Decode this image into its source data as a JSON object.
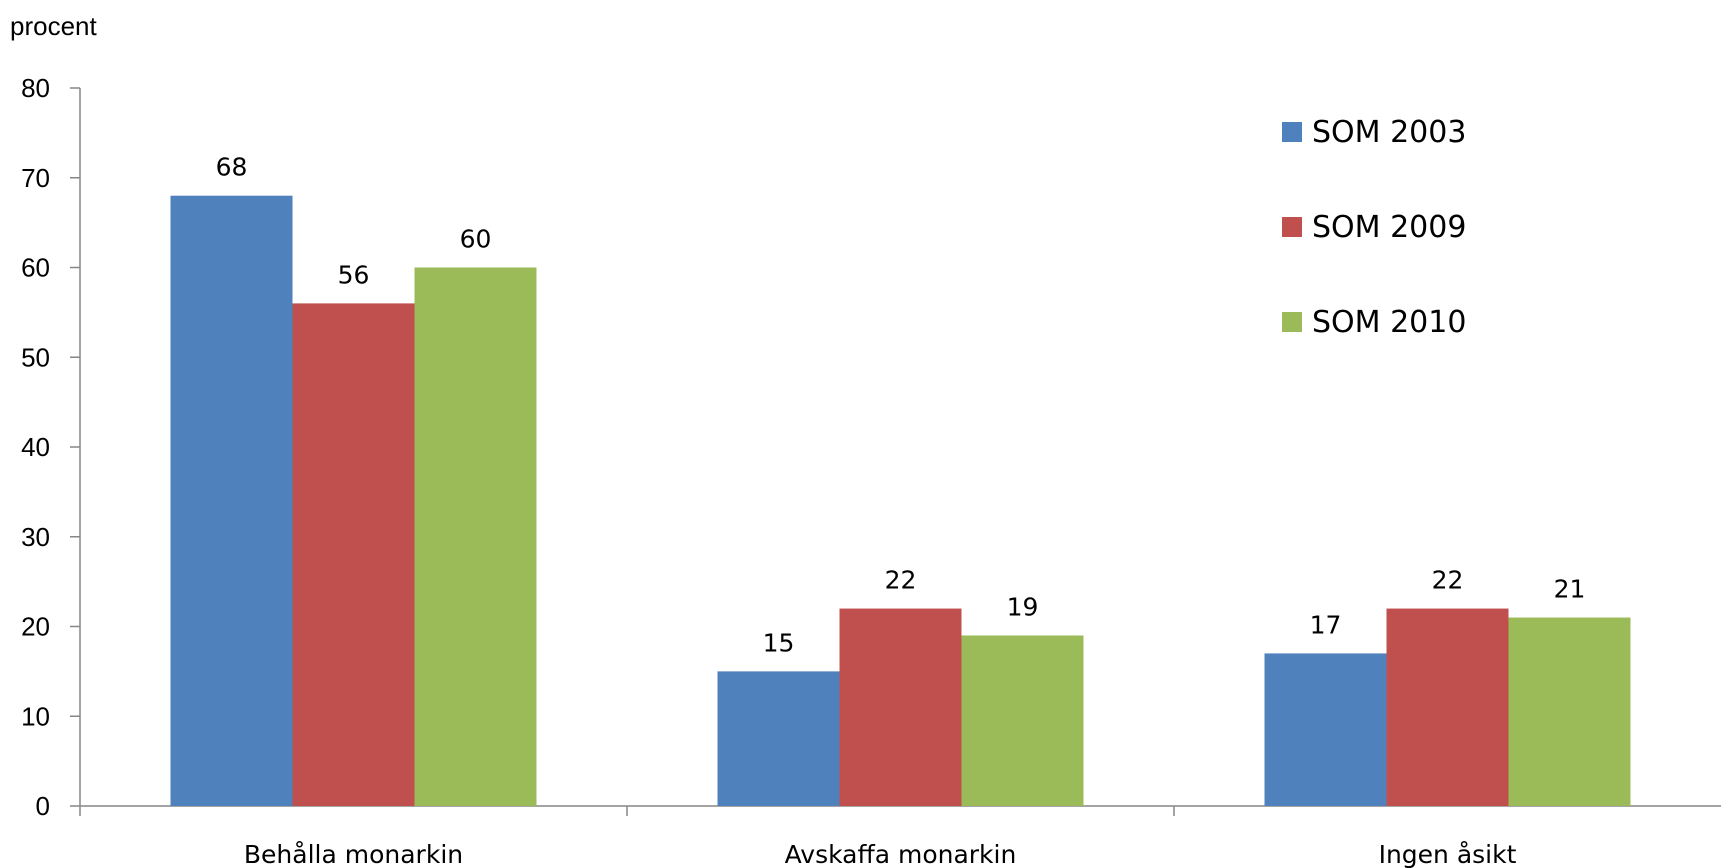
{
  "chart_data": {
    "type": "bar",
    "ylabel": "procent",
    "categories": [
      "Behålla monarkin",
      "Avskaffa monarkin",
      "Ingen åsikt"
    ],
    "series": [
      {
        "name": "SOM 2003",
        "values": [
          68,
          15,
          17
        ],
        "color": "#4F81BD"
      },
      {
        "name": "SOM 2009",
        "values": [
          56,
          22,
          22
        ],
        "color": "#C0504D"
      },
      {
        "name": "SOM 2010",
        "values": [
          60,
          19,
          21
        ],
        "color": "#9BBB59"
      }
    ],
    "ylim": [
      0,
      80
    ],
    "yticks": [
      0,
      10,
      20,
      30,
      40,
      50,
      60,
      70,
      80
    ],
    "grid": false,
    "legend_position": "top-right",
    "data_labels": true
  }
}
